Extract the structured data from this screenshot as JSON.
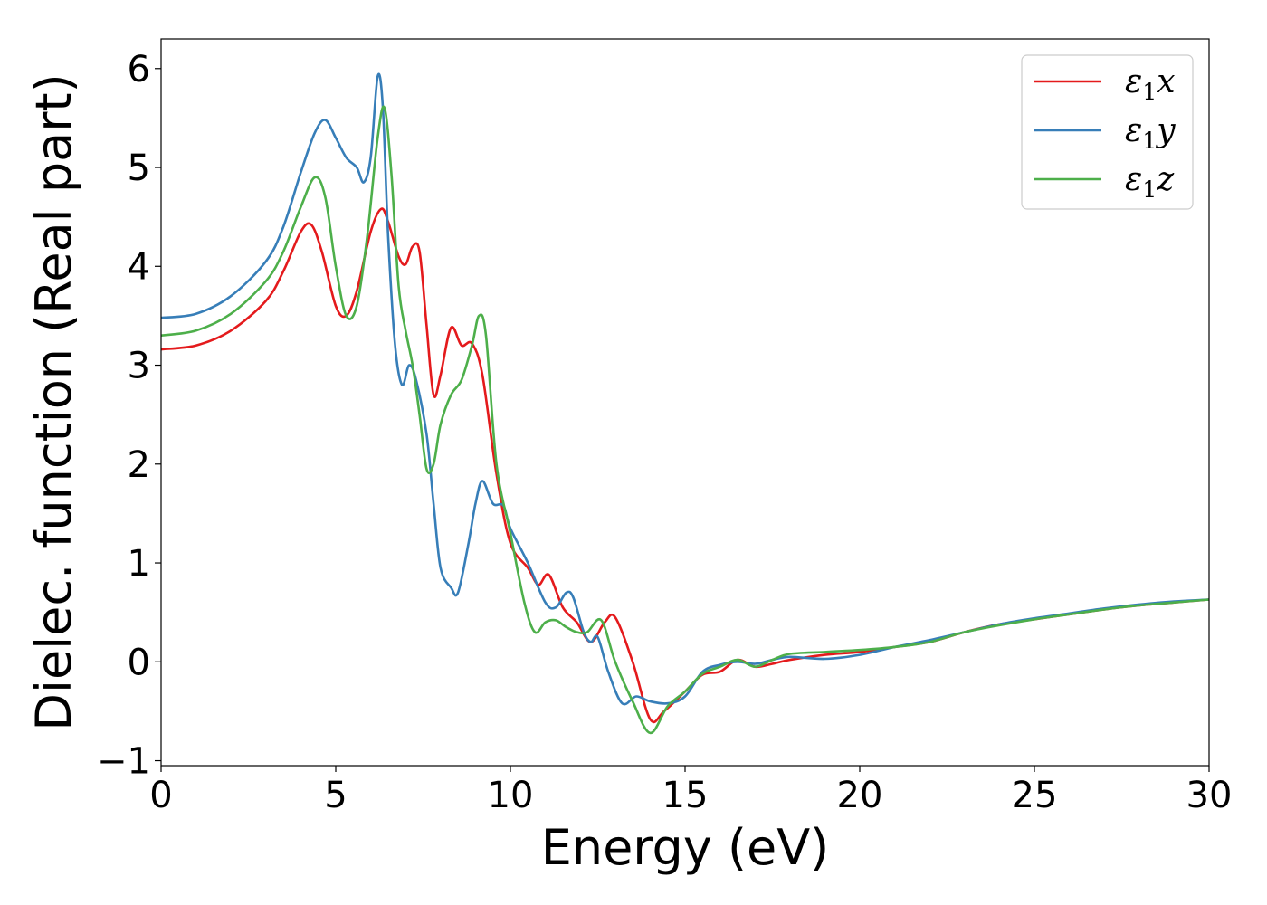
{
  "chart_data": {
    "type": "line",
    "title": "",
    "xlabel": "Energy (eV)",
    "ylabel": "Dielec. function (Real part)",
    "xlim": [
      0,
      30
    ],
    "ylim": [
      -1.05,
      6.3
    ],
    "xticks": [
      0,
      5,
      10,
      15,
      20,
      25,
      30
    ],
    "yticks": [
      -1,
      0,
      1,
      2,
      3,
      4,
      5,
      6
    ],
    "ytick_labels": [
      "−1",
      "0",
      "1",
      "2",
      "3",
      "4",
      "5",
      "6"
    ],
    "grid": false,
    "legend_position": "top-right",
    "series": [
      {
        "name": "ε1x",
        "name_base": "ε",
        "name_sub": "1",
        "name_suffix": "x",
        "color": "#e41a1c",
        "x": [
          0,
          1,
          2,
          3,
          3.5,
          4,
          4.3,
          4.6,
          5,
          5.3,
          5.6,
          6,
          6.3,
          6.5,
          6.8,
          7.0,
          7.2,
          7.4,
          7.6,
          7.8,
          8.0,
          8.3,
          8.6,
          8.9,
          9.2,
          9.6,
          10.0,
          10.5,
          10.8,
          11.1,
          11.5,
          11.9,
          12.3,
          12.7,
          13.0,
          13.5,
          14.0,
          14.4,
          15.0,
          15.5,
          16.0,
          16.5,
          17.0,
          17.5,
          18.0,
          19.0,
          20.0,
          21.0,
          22.0,
          23.0,
          24.0,
          25.0,
          26.0,
          27.0,
          28.0,
          29.0,
          30.0
        ],
        "y": [
          3.16,
          3.2,
          3.35,
          3.65,
          3.95,
          4.35,
          4.42,
          4.15,
          3.6,
          3.5,
          3.75,
          4.35,
          4.58,
          4.45,
          4.1,
          4.02,
          4.2,
          4.15,
          3.4,
          2.7,
          2.9,
          3.38,
          3.2,
          3.22,
          2.9,
          1.9,
          1.2,
          0.95,
          0.78,
          0.88,
          0.55,
          0.4,
          0.2,
          0.4,
          0.45,
          0.0,
          -0.58,
          -0.5,
          -0.3,
          -0.13,
          -0.1,
          0.02,
          -0.05,
          -0.02,
          0.02,
          0.07,
          0.1,
          0.15,
          0.2,
          0.3,
          0.38,
          0.43,
          0.48,
          0.53,
          0.57,
          0.6,
          0.63
        ]
      },
      {
        "name": "ε1y",
        "name_base": "ε",
        "name_sub": "1",
        "name_suffix": "y",
        "color": "#377eb8",
        "x": [
          0,
          1,
          2,
          3,
          3.5,
          4,
          4.4,
          4.7,
          5.0,
          5.3,
          5.6,
          5.8,
          6.0,
          6.2,
          6.35,
          6.5,
          6.7,
          6.9,
          7.1,
          7.3,
          7.6,
          7.8,
          8.0,
          8.3,
          8.5,
          8.8,
          9.0,
          9.2,
          9.5,
          9.8,
          10.0,
          10.5,
          11.0,
          11.3,
          11.6,
          11.8,
          12.1,
          12.3,
          12.5,
          12.8,
          13.2,
          13.6,
          14.0,
          14.5,
          15.0,
          15.5,
          16.0,
          16.5,
          17.0,
          17.5,
          18.0,
          19.0,
          20.0,
          21.0,
          22.0,
          23.0,
          24.0,
          25.0,
          26.0,
          27.0,
          28.0,
          29.0,
          30.0
        ],
        "y": [
          3.48,
          3.52,
          3.7,
          4.05,
          4.4,
          4.95,
          5.35,
          5.48,
          5.3,
          5.1,
          5.0,
          4.85,
          5.1,
          5.92,
          5.6,
          4.3,
          3.2,
          2.8,
          3.0,
          2.85,
          2.3,
          1.6,
          0.95,
          0.75,
          0.7,
          1.2,
          1.6,
          1.83,
          1.6,
          1.58,
          1.35,
          1.0,
          0.6,
          0.55,
          0.7,
          0.65,
          0.3,
          0.2,
          0.25,
          -0.1,
          -0.42,
          -0.35,
          -0.4,
          -0.42,
          -0.35,
          -0.1,
          -0.03,
          0.0,
          -0.02,
          0.02,
          0.05,
          0.03,
          0.07,
          0.15,
          0.22,
          0.3,
          0.38,
          0.44,
          0.49,
          0.54,
          0.58,
          0.61,
          0.63
        ]
      },
      {
        "name": "ε1z",
        "name_base": "ε",
        "name_sub": "1",
        "name_suffix": "z",
        "color": "#4daf4a",
        "x": [
          0,
          1,
          2,
          3,
          3.5,
          4,
          4.4,
          4.7,
          5.0,
          5.3,
          5.6,
          5.9,
          6.2,
          6.4,
          6.6,
          6.8,
          7.0,
          7.2,
          7.4,
          7.6,
          7.8,
          8.0,
          8.3,
          8.6,
          8.9,
          9.1,
          9.3,
          9.6,
          10.0,
          10.4,
          10.7,
          11.0,
          11.3,
          11.6,
          11.9,
          12.2,
          12.6,
          13.0,
          13.5,
          14.0,
          14.5,
          15.0,
          15.5,
          16.0,
          16.5,
          17.0,
          17.5,
          18.0,
          19.0,
          20.0,
          21.0,
          22.0,
          23.0,
          24.0,
          25.0,
          26.0,
          27.0,
          28.0,
          29.0,
          30.0
        ],
        "y": [
          3.3,
          3.35,
          3.52,
          3.85,
          4.15,
          4.6,
          4.9,
          4.7,
          4.0,
          3.5,
          3.6,
          4.3,
          5.3,
          5.6,
          4.9,
          3.8,
          3.35,
          3.0,
          2.5,
          1.95,
          2.0,
          2.4,
          2.7,
          2.85,
          3.2,
          3.5,
          3.3,
          2.0,
          1.3,
          0.6,
          0.3,
          0.4,
          0.42,
          0.35,
          0.3,
          0.3,
          0.42,
          0.0,
          -0.4,
          -0.72,
          -0.45,
          -0.3,
          -0.12,
          -0.05,
          0.02,
          -0.05,
          0.02,
          0.08,
          0.1,
          0.12,
          0.15,
          0.2,
          0.3,
          0.37,
          0.43,
          0.48,
          0.53,
          0.57,
          0.6,
          0.63
        ]
      }
    ]
  }
}
